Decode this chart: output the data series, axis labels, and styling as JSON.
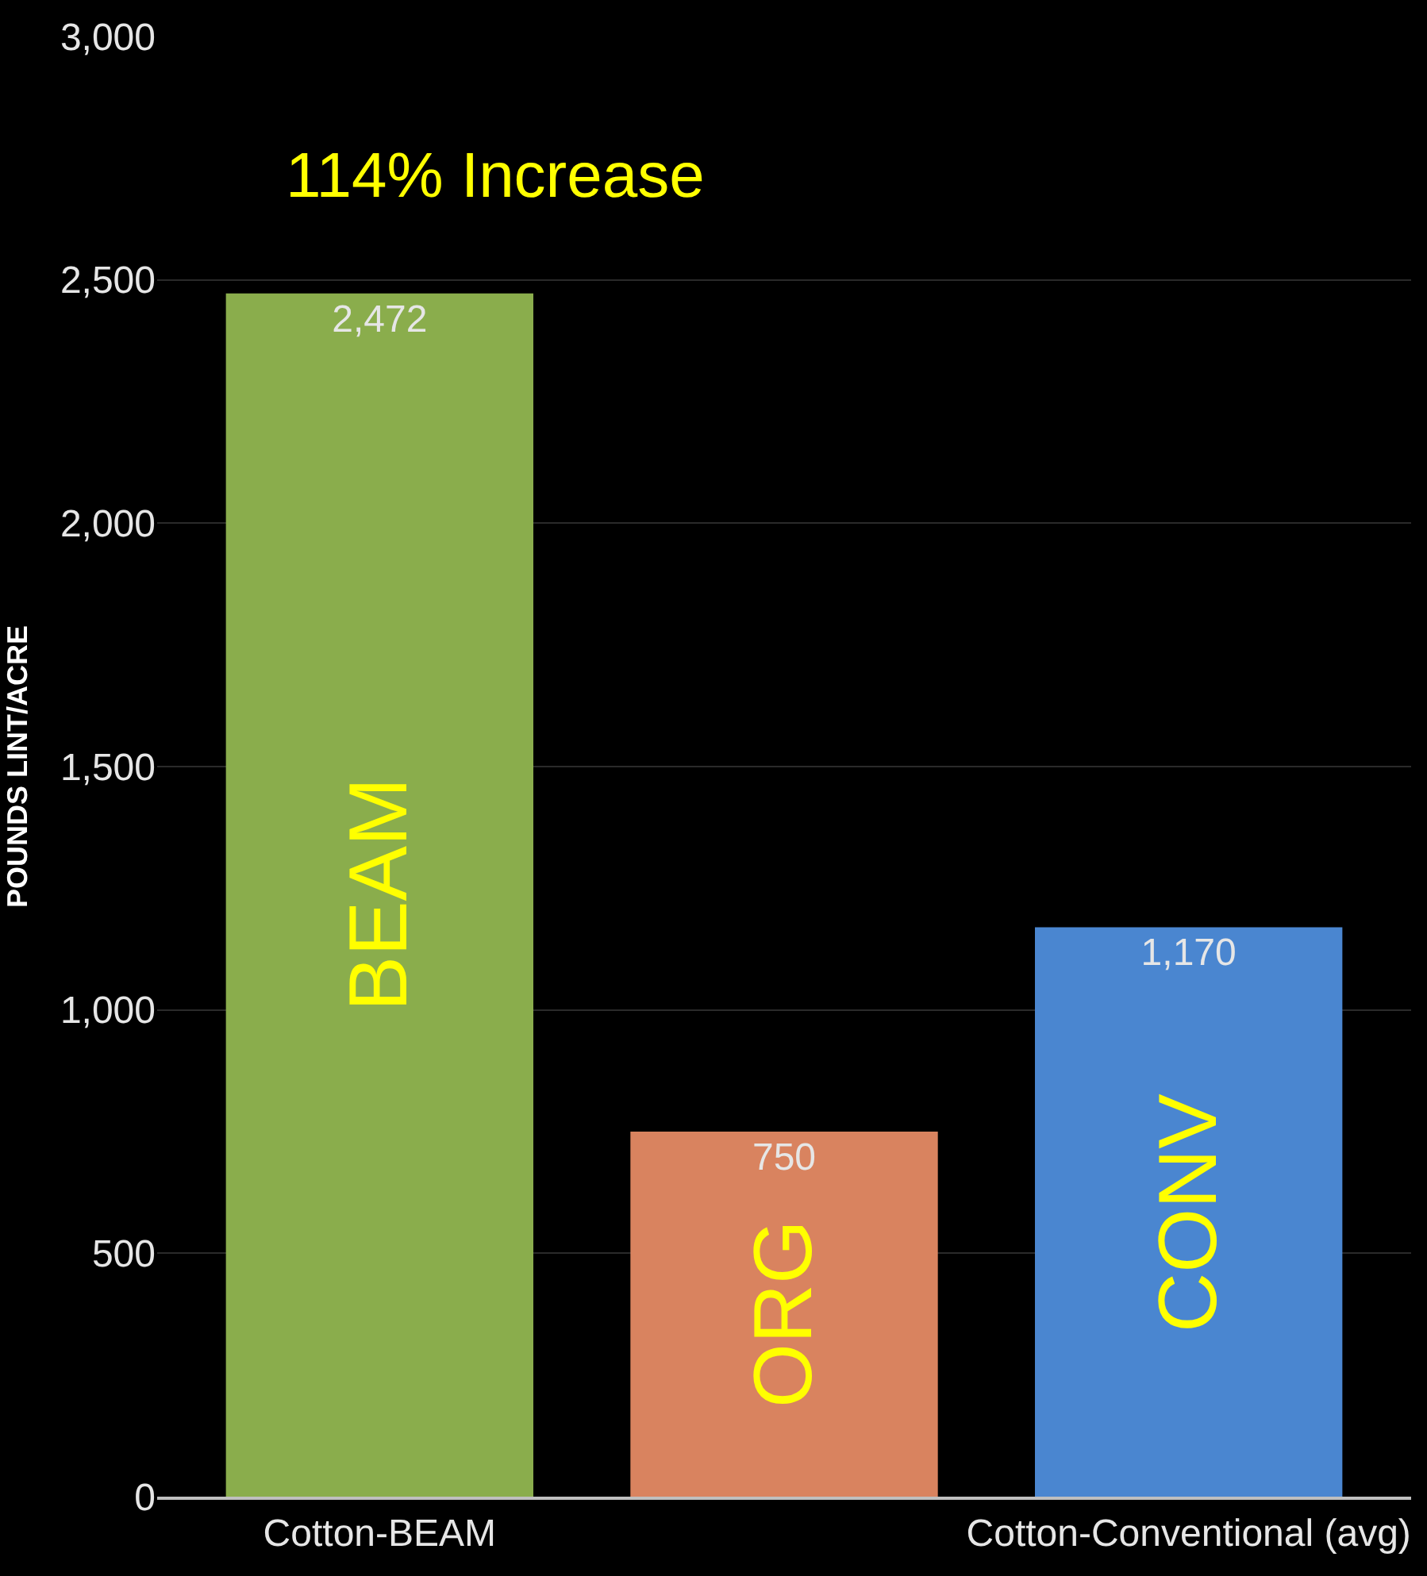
{
  "chart_data": {
    "type": "bar",
    "ylabel": "POUNDS LINT/ACRE",
    "categories": [
      "Cotton-BEAM",
      null,
      "Cotton-Conventional (avg)"
    ],
    "series": [
      {
        "name": "BEAM",
        "color": "#8aad4c",
        "values": [
          2472,
          null,
          null
        ],
        "value_labels": [
          "2,472",
          null,
          null
        ]
      },
      {
        "name": "ORG",
        "color": "#d9835f",
        "values": [
          null,
          750,
          null
        ],
        "value_labels": [
          null,
          "750",
          null
        ]
      },
      {
        "name": "CONV",
        "color": "#4a86d0",
        "values": [
          null,
          null,
          1170
        ],
        "value_labels": [
          null,
          null,
          "1,170"
        ]
      }
    ],
    "ylim": [
      0,
      3000
    ],
    "yticks": [
      {
        "value": 0,
        "label": "0"
      },
      {
        "value": 500,
        "label": "500"
      },
      {
        "value": 1000,
        "label": "1,000"
      },
      {
        "value": 1500,
        "label": "1,500"
      },
      {
        "value": 2000,
        "label": "2,000"
      },
      {
        "value": 2500,
        "label": "2,500"
      },
      {
        "value": 3000,
        "label": "3,000"
      }
    ],
    "grid": "y",
    "legend": false,
    "annotations": [
      "114% Increase"
    ]
  }
}
